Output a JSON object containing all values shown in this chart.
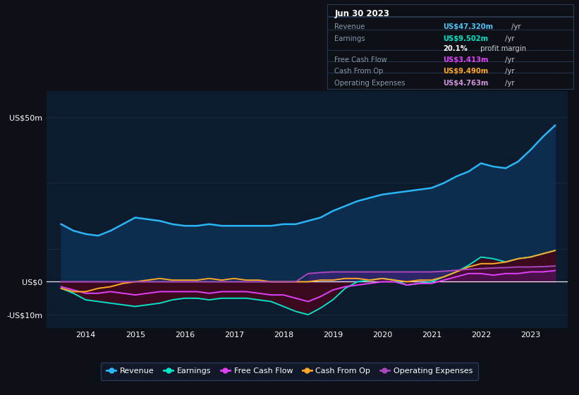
{
  "background_color": "#0d1117",
  "plot_bg_color": "#0d1b2e",
  "grid_color": "#1a2a40",
  "title_box": {
    "date": "Jun 30 2023",
    "rows": [
      {
        "label": "Revenue",
        "value": "US$47.320m",
        "unit": " /yr",
        "value_color": "#4fc3f7"
      },
      {
        "label": "Earnings",
        "value": "US$9.502m",
        "unit": " /yr",
        "value_color": "#00e5c8"
      },
      {
        "label": "",
        "value": "20.1%",
        "unit": " profit margin",
        "value_color": "#ffffff"
      },
      {
        "label": "Free Cash Flow",
        "value": "US$3.413m",
        "unit": " /yr",
        "value_color": "#e040fb"
      },
      {
        "label": "Cash From Op",
        "value": "US$9.490m",
        "unit": " /yr",
        "value_color": "#ffa726"
      },
      {
        "label": "Operating Expenses",
        "value": "US$4.763m",
        "unit": " /yr",
        "value_color": "#ce93d8"
      }
    ]
  },
  "ytick_labels": [
    "US$50m",
    "US$0",
    "-US$10m"
  ],
  "ytick_values": [
    50,
    0,
    -10
  ],
  "ylim": [
    -14,
    58
  ],
  "xlim": [
    2013.2,
    2023.75
  ],
  "years": [
    2013.5,
    2013.75,
    2014.0,
    2014.25,
    2014.5,
    2014.75,
    2015.0,
    2015.25,
    2015.5,
    2015.75,
    2016.0,
    2016.25,
    2016.5,
    2016.75,
    2017.0,
    2017.25,
    2017.5,
    2017.75,
    2018.0,
    2018.25,
    2018.5,
    2018.75,
    2019.0,
    2019.25,
    2019.5,
    2019.75,
    2020.0,
    2020.25,
    2020.5,
    2020.75,
    2021.0,
    2021.25,
    2021.5,
    2021.75,
    2022.0,
    2022.25,
    2022.5,
    2022.75,
    2023.0,
    2023.25,
    2023.5
  ],
  "revenue": [
    17.5,
    15.5,
    14.5,
    14.0,
    15.5,
    17.5,
    19.5,
    19.0,
    18.5,
    17.5,
    17.0,
    17.0,
    17.5,
    17.0,
    17.0,
    17.0,
    17.0,
    17.0,
    17.5,
    17.5,
    18.5,
    19.5,
    21.5,
    23.0,
    24.5,
    25.5,
    26.5,
    27.0,
    27.5,
    28.0,
    28.5,
    30.0,
    32.0,
    33.5,
    36.0,
    35.0,
    34.5,
    36.5,
    40.0,
    44.0,
    47.5
  ],
  "earnings": [
    -2.0,
    -3.5,
    -5.5,
    -6.0,
    -6.5,
    -7.0,
    -7.5,
    -7.0,
    -6.5,
    -5.5,
    -5.0,
    -5.0,
    -5.5,
    -5.0,
    -5.0,
    -5.0,
    -5.5,
    -6.0,
    -7.5,
    -9.0,
    -10.0,
    -8.0,
    -5.5,
    -2.0,
    0.0,
    0.5,
    1.0,
    0.5,
    -1.0,
    -0.5,
    0.0,
    1.5,
    3.0,
    5.0,
    7.5,
    7.0,
    6.0,
    7.0,
    7.5,
    8.5,
    9.5
  ],
  "free_cash_flow": [
    -1.5,
    -2.5,
    -3.5,
    -3.5,
    -3.0,
    -3.5,
    -4.0,
    -3.5,
    -3.0,
    -3.0,
    -3.0,
    -3.0,
    -3.5,
    -3.0,
    -3.0,
    -3.0,
    -3.5,
    -4.0,
    -4.0,
    -5.0,
    -6.0,
    -4.5,
    -2.5,
    -1.5,
    -1.0,
    -0.5,
    0.0,
    0.0,
    -1.0,
    -0.5,
    -0.5,
    0.5,
    1.5,
    2.5,
    2.5,
    2.0,
    2.5,
    2.5,
    3.0,
    3.0,
    3.4
  ],
  "cash_from_op": [
    -2.0,
    -3.0,
    -3.0,
    -2.0,
    -1.5,
    -0.5,
    0.0,
    0.5,
    1.0,
    0.5,
    0.5,
    0.5,
    1.0,
    0.5,
    1.0,
    0.5,
    0.5,
    0.0,
    0.0,
    0.0,
    0.0,
    0.5,
    0.5,
    1.0,
    1.0,
    0.5,
    1.0,
    0.5,
    0.0,
    0.5,
    0.5,
    1.5,
    3.0,
    4.5,
    5.5,
    5.5,
    6.0,
    7.0,
    7.5,
    8.5,
    9.5
  ],
  "operating_expenses": [
    0,
    0,
    0,
    0,
    0,
    0,
    0,
    0,
    0,
    0,
    0,
    0,
    0,
    0,
    0,
    0,
    0,
    0,
    0,
    0,
    2.5,
    2.8,
    3.0,
    3.0,
    3.0,
    3.0,
    3.0,
    3.0,
    3.0,
    3.0,
    3.0,
    3.2,
    3.5,
    3.8,
    4.0,
    4.2,
    4.3,
    4.5,
    4.5,
    4.6,
    4.8
  ],
  "revenue_color": "#29b6f6",
  "earnings_color": "#00e5c8",
  "free_cash_flow_color": "#e040fb",
  "cash_from_op_color": "#ffa726",
  "operating_expenses_color": "#ab47bc",
  "revenue_fill_color": "#0d2d4e",
  "earnings_fill_dark": "#3b0a1e",
  "legend_items": [
    {
      "label": "Revenue",
      "color": "#29b6f6"
    },
    {
      "label": "Earnings",
      "color": "#00e5c8"
    },
    {
      "label": "Free Cash Flow",
      "color": "#e040fb"
    },
    {
      "label": "Cash From Op",
      "color": "#ffa726"
    },
    {
      "label": "Operating Expenses",
      "color": "#ab47bc"
    }
  ]
}
